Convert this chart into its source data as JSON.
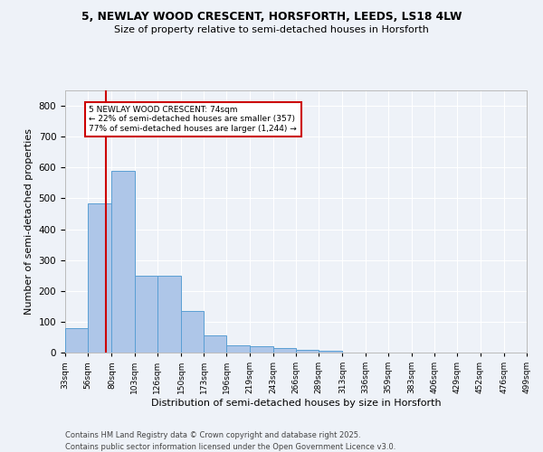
{
  "title1": "5, NEWLAY WOOD CRESCENT, HORSFORTH, LEEDS, LS18 4LW",
  "title2": "Size of property relative to semi-detached houses in Horsforth",
  "xlabel": "Distribution of semi-detached houses by size in Horsforth",
  "ylabel": "Number of semi-detached properties",
  "bar_edges": [
    33,
    56,
    80,
    103,
    126,
    150,
    173,
    196,
    219,
    243,
    266,
    289,
    313,
    336,
    359,
    383,
    406,
    429,
    452,
    476,
    499
  ],
  "bar_heights": [
    80,
    483,
    590,
    248,
    249,
    135,
    55,
    22,
    20,
    14,
    8,
    5,
    0,
    0,
    0,
    0,
    0,
    0,
    0,
    0
  ],
  "bar_color": "#aec6e8",
  "bar_edge_color": "#5a9fd4",
  "vline_x": 74,
  "vline_color": "#cc0000",
  "annotation_title": "5 NEWLAY WOOD CRESCENT: 74sqm",
  "annotation_line1": "← 22% of semi-detached houses are smaller (357)",
  "annotation_line2": "77% of semi-detached houses are larger (1,244) →",
  "annotation_box_color": "#cc0000",
  "annotation_fill": "#ffffff",
  "ylim": [
    0,
    850
  ],
  "yticks": [
    0,
    100,
    200,
    300,
    400,
    500,
    600,
    700,
    800
  ],
  "tick_labels": [
    "33sqm",
    "56sqm",
    "80sqm",
    "103sqm",
    "126sqm",
    "150sqm",
    "173sqm",
    "196sqm",
    "219sqm",
    "243sqm",
    "266sqm",
    "289sqm",
    "313sqm",
    "336sqm",
    "359sqm",
    "383sqm",
    "406sqm",
    "429sqm",
    "452sqm",
    "476sqm",
    "499sqm"
  ],
  "footnote1": "Contains HM Land Registry data © Crown copyright and database right 2025.",
  "footnote2": "Contains public sector information licensed under the Open Government Licence v3.0.",
  "bg_color": "#eef2f8",
  "grid_color": "#ffffff"
}
